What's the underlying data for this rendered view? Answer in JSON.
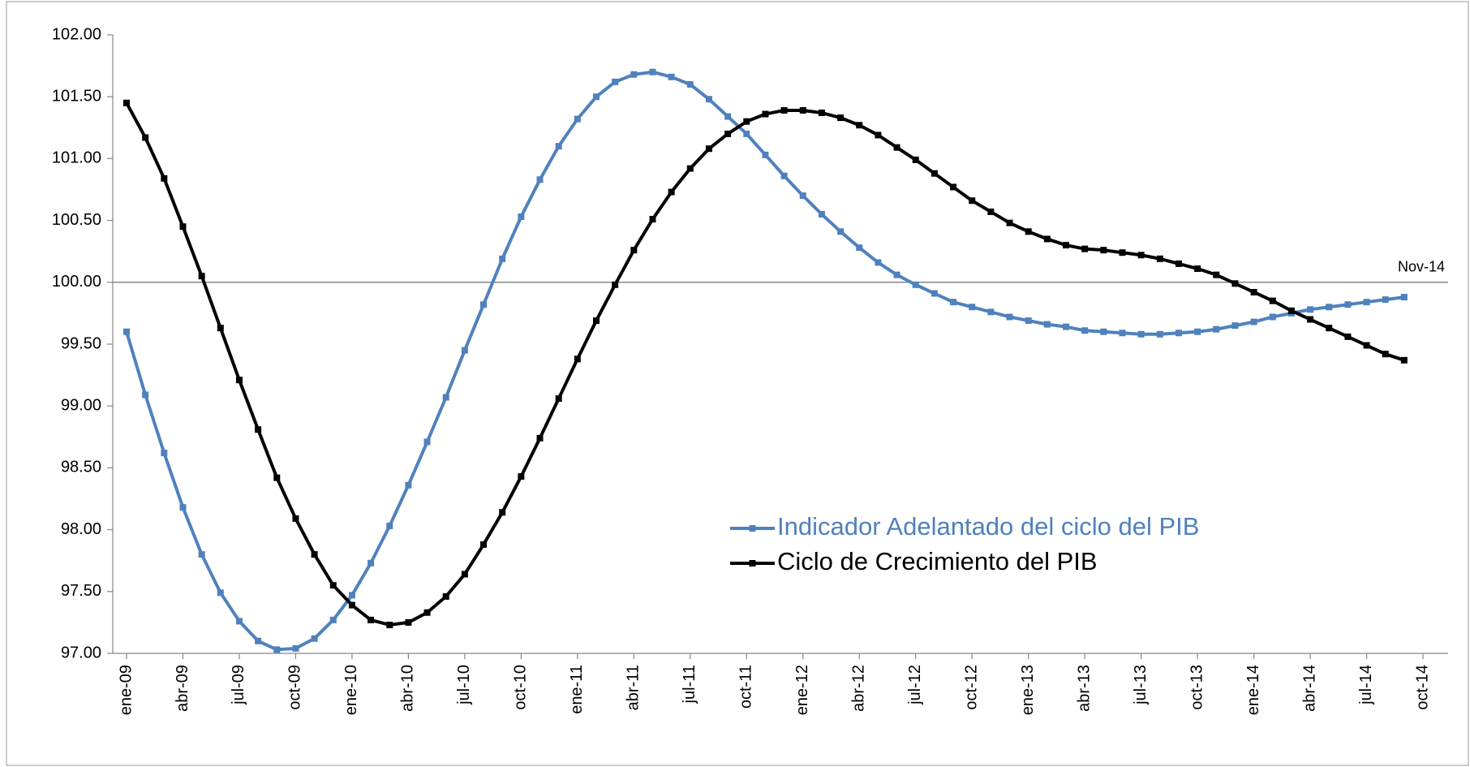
{
  "chart_data": {
    "type": "line",
    "categories": [
      "ene-09",
      null,
      null,
      "abr-09",
      null,
      null,
      "jul-09",
      null,
      null,
      "oct-09",
      null,
      null,
      "ene-10",
      null,
      null,
      "abr-10",
      null,
      null,
      "jul-10",
      null,
      null,
      "oct-10",
      null,
      null,
      "ene-11",
      null,
      null,
      "abr-11",
      null,
      null,
      "jul-11",
      null,
      null,
      "oct-11",
      null,
      null,
      "ene-12",
      null,
      null,
      "abr-12",
      null,
      null,
      "jul-12",
      null,
      null,
      "oct-12",
      null,
      null,
      "ene-13",
      null,
      null,
      "abr-13",
      null,
      null,
      "jul-13",
      null,
      null,
      "oct-13",
      null,
      null,
      "ene-14",
      null,
      null,
      "abr-14",
      null,
      null,
      "jul-14",
      null,
      null,
      "oct-14",
      null
    ],
    "series": [
      {
        "name": "Indicador Adelantado del ciclo del PIB",
        "color": "#4f81bd",
        "values": [
          99.6,
          99.09,
          98.62,
          98.18,
          97.8,
          97.49,
          97.26,
          97.1,
          97.03,
          97.04,
          97.12,
          97.27,
          97.47,
          97.73,
          98.03,
          98.36,
          98.71,
          99.07,
          99.45,
          99.82,
          100.19,
          100.53,
          100.83,
          101.1,
          101.32,
          101.5,
          101.62,
          101.68,
          101.7,
          101.66,
          101.6,
          101.48,
          101.34,
          101.2,
          101.03,
          100.86,
          100.7,
          100.55,
          100.41,
          100.28,
          100.16,
          100.06,
          99.98,
          99.91,
          99.84,
          99.8,
          99.76,
          99.72,
          99.69,
          99.66,
          99.64,
          99.61,
          99.6,
          99.59,
          99.58,
          99.58,
          99.59,
          99.6,
          99.62,
          99.65,
          99.68,
          99.72,
          99.75,
          99.78,
          99.8,
          99.82,
          99.84,
          99.86,
          99.88,
          null,
          null
        ]
      },
      {
        "name": "Ciclo de Crecimiento del PIB",
        "color": "#000000",
        "values": [
          101.45,
          101.17,
          100.84,
          100.45,
          100.05,
          99.63,
          99.21,
          98.81,
          98.42,
          98.09,
          97.8,
          97.55,
          97.39,
          97.27,
          97.23,
          97.25,
          97.33,
          97.46,
          97.64,
          97.88,
          98.14,
          98.43,
          98.74,
          99.06,
          99.38,
          99.69,
          99.98,
          100.26,
          100.51,
          100.73,
          100.92,
          101.08,
          101.2,
          101.3,
          101.36,
          101.39,
          101.39,
          101.37,
          101.33,
          101.27,
          101.19,
          101.09,
          100.99,
          100.88,
          100.77,
          100.66,
          100.57,
          100.48,
          100.41,
          100.35,
          100.3,
          100.27,
          100.26,
          100.24,
          100.22,
          100.19,
          100.15,
          100.11,
          100.06,
          99.99,
          99.92,
          99.85,
          99.77,
          99.7,
          99.63,
          99.56,
          99.49,
          99.42,
          99.37,
          null,
          null
        ]
      }
    ],
    "ylim": [
      97,
      102
    ],
    "yticks": [
      {
        "value": 97,
        "label": "97.00"
      },
      {
        "value": 97.5,
        "label": "97.50"
      },
      {
        "value": 98,
        "label": "98.00"
      },
      {
        "value": 98.5,
        "label": "98.50"
      },
      {
        "value": 99,
        "label": "99.00"
      },
      {
        "value": 99.5,
        "label": "99.50"
      },
      {
        "value": 100,
        "label": "100.00"
      },
      {
        "value": 100.5,
        "label": "100.50"
      },
      {
        "value": 101,
        "label": "101.00"
      },
      {
        "value": 101.5,
        "label": "101.50"
      },
      {
        "value": 102,
        "label": "102.00"
      }
    ],
    "reference_line": {
      "value": 100,
      "label": "Nov-14"
    },
    "legend": "center"
  }
}
